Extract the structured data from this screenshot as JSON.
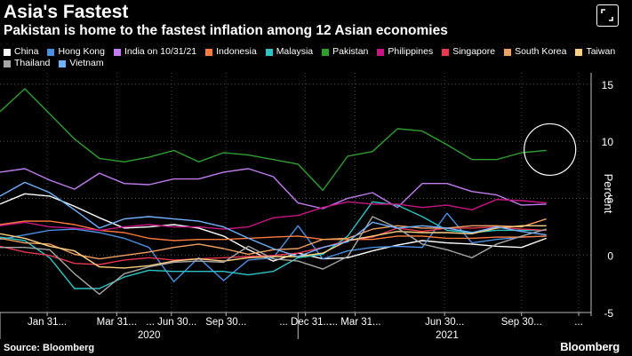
{
  "header": {
    "title": "Asia's Fastest",
    "subtitle": "Pakistan is home to the fastest inflation among 12 Asian economies"
  },
  "footer": {
    "source": "Source: Bloomberg",
    "brand": "Bloomberg"
  },
  "chart_data": {
    "type": "line",
    "title": "Asia's Fastest",
    "ylabel": "Percent",
    "ylim": [
      -5,
      16
    ],
    "yticks": [
      -5,
      0,
      5,
      10,
      15
    ],
    "xlim": [
      0,
      23.8
    ],
    "xtick_labels": [
      "Jan 31...",
      "Mar 31...",
      "... Jun 30...",
      "Sep 30...",
      "... Dec 31...",
      "... Mar 31...",
      "Jun 30...",
      "Sep 30...",
      "..."
    ],
    "xtick_positions": [
      1.9,
      4.7,
      6.9,
      9.1,
      12.3,
      14.3,
      17.9,
      21,
      23.3
    ],
    "year_labels": [
      {
        "label": "2020",
        "at": 6
      },
      {
        "label": "2021",
        "at": 18
      }
    ],
    "x": [
      0,
      1,
      2,
      3,
      4,
      5,
      6,
      7,
      8,
      9,
      10,
      11,
      12,
      13,
      14,
      15,
      16,
      17,
      18,
      19,
      20,
      21,
      22
    ],
    "annotation": "circle around latest Pakistan reading",
    "series": [
      {
        "name": "China",
        "color": "#ffffff",
        "values": [
          4.5,
          5.4,
          5.2,
          4.3,
          3.3,
          2.4,
          2.5,
          2.7,
          2.4,
          1.7,
          0.5,
          -0.5,
          0.2,
          -0.3,
          -0.2,
          0.4,
          0.9,
          1.3,
          1.1,
          1.0,
          0.8,
          0.7,
          1.5
        ]
      },
      {
        "name": "Hong Kong",
        "color": "#4a90e2",
        "values": [
          1.4,
          1.8,
          2.2,
          2.3,
          2.0,
          1.5,
          0.7,
          -2.3,
          -0.2,
          -2.2,
          -0.4,
          -0.2,
          2.6,
          -0.3,
          0.4,
          0.7,
          0.8,
          0.7,
          3.7,
          1.1,
          1.4,
          1.6,
          1.7
        ]
      },
      {
        "name": "India on 10/31/21",
        "color": "#c07cf0",
        "values": [
          7.3,
          7.6,
          6.6,
          5.8,
          7.2,
          6.3,
          6.2,
          6.7,
          6.7,
          7.3,
          7.6,
          6.9,
          4.6,
          4.1,
          5.0,
          5.5,
          4.2,
          6.3,
          6.3,
          5.6,
          5.3,
          4.4,
          4.5
        ]
      },
      {
        "name": "Indonesia",
        "color": "#ff7a3d",
        "values": [
          2.7,
          3.0,
          3.0,
          2.7,
          2.2,
          2.0,
          1.5,
          1.3,
          1.4,
          1.4,
          1.5,
          1.6,
          1.7,
          1.4,
          1.4,
          1.4,
          1.7,
          1.7,
          1.5,
          1.5,
          1.6,
          1.6,
          1.7
        ]
      },
      {
        "name": "Malaysia",
        "color": "#2ec4c4",
        "values": [
          1.6,
          1.3,
          -0.2,
          -2.9,
          -2.9,
          -1.9,
          -1.3,
          -1.4,
          -1.4,
          -1.4,
          -1.7,
          -1.4,
          -0.2,
          0.1,
          1.7,
          4.7,
          4.4,
          3.4,
          2.2,
          2.0,
          2.2,
          2.2,
          2.2
        ]
      },
      {
        "name": "Pakistan",
        "color": "#2f9e2f",
        "values": [
          12.6,
          14.6,
          12.4,
          10.2,
          8.5,
          8.2,
          8.6,
          9.2,
          8.2,
          9.0,
          8.8,
          8.4,
          8.0,
          5.7,
          8.7,
          9.1,
          11.1,
          10.9,
          9.7,
          8.4,
          8.4,
          9.0,
          9.2
        ]
      },
      {
        "name": "Philippines",
        "color": "#c71585",
        "values": [
          2.6,
          2.9,
          2.5,
          2.4,
          2.2,
          2.5,
          2.7,
          2.5,
          2.5,
          2.3,
          2.5,
          3.3,
          3.5,
          4.2,
          4.7,
          4.5,
          4.5,
          4.2,
          4.4,
          4.0,
          4.9,
          4.8,
          4.6
        ]
      },
      {
        "name": "Singapore",
        "color": "#e8384f",
        "values": [
          0.8,
          0.3,
          0.0,
          -0.7,
          -0.8,
          -0.4,
          -0.2,
          -0.4,
          -0.3,
          -0.2,
          -0.1,
          0.0,
          0.2,
          0.7,
          1.3,
          1.6,
          2.4,
          2.1,
          2.4,
          2.4,
          2.5,
          2.3,
          2.2
        ]
      },
      {
        "name": "South Korea",
        "color": "#f0a060",
        "values": [
          1.5,
          1.1,
          1.0,
          0.1,
          -0.3,
          0.0,
          0.3,
          0.7,
          1.0,
          0.6,
          0.1,
          0.5,
          0.6,
          1.4,
          1.5,
          2.3,
          2.6,
          2.4,
          2.4,
          2.6,
          2.6,
          2.5,
          3.2
        ]
      },
      {
        "name": "Taiwan",
        "color": "#ffd080",
        "values": [
          1.9,
          1.5,
          0.8,
          0.4,
          -1.0,
          -1.1,
          -0.9,
          -0.5,
          -0.3,
          -0.5,
          -0.2,
          -0.1,
          -0.1,
          0.2,
          1.3,
          1.7,
          2.1,
          2.0,
          2.0,
          1.9,
          2.4,
          2.6,
          2.6
        ]
      },
      {
        "name": "Thailand",
        "color": "#a6a6a6",
        "values": [
          0.7,
          0.7,
          0.5,
          -1.6,
          -3.4,
          -1.6,
          -1.0,
          -0.6,
          -0.5,
          -0.6,
          0.8,
          -0.3,
          -0.5,
          -1.2,
          -0.1,
          3.4,
          2.4,
          1.0,
          0.5,
          -0.2,
          1.0,
          1.7,
          2.3
        ]
      },
      {
        "name": "Vietnam",
        "color": "#6fb2ff",
        "values": [
          5.2,
          6.4,
          5.5,
          4.0,
          2.4,
          3.2,
          3.4,
          3.2,
          3.0,
          2.5,
          1.5,
          0.6,
          -0.1,
          0.7,
          1.2,
          2.9,
          2.4,
          2.6,
          2.4,
          2.0,
          2.5,
          2.1,
          1.8
        ]
      }
    ]
  }
}
